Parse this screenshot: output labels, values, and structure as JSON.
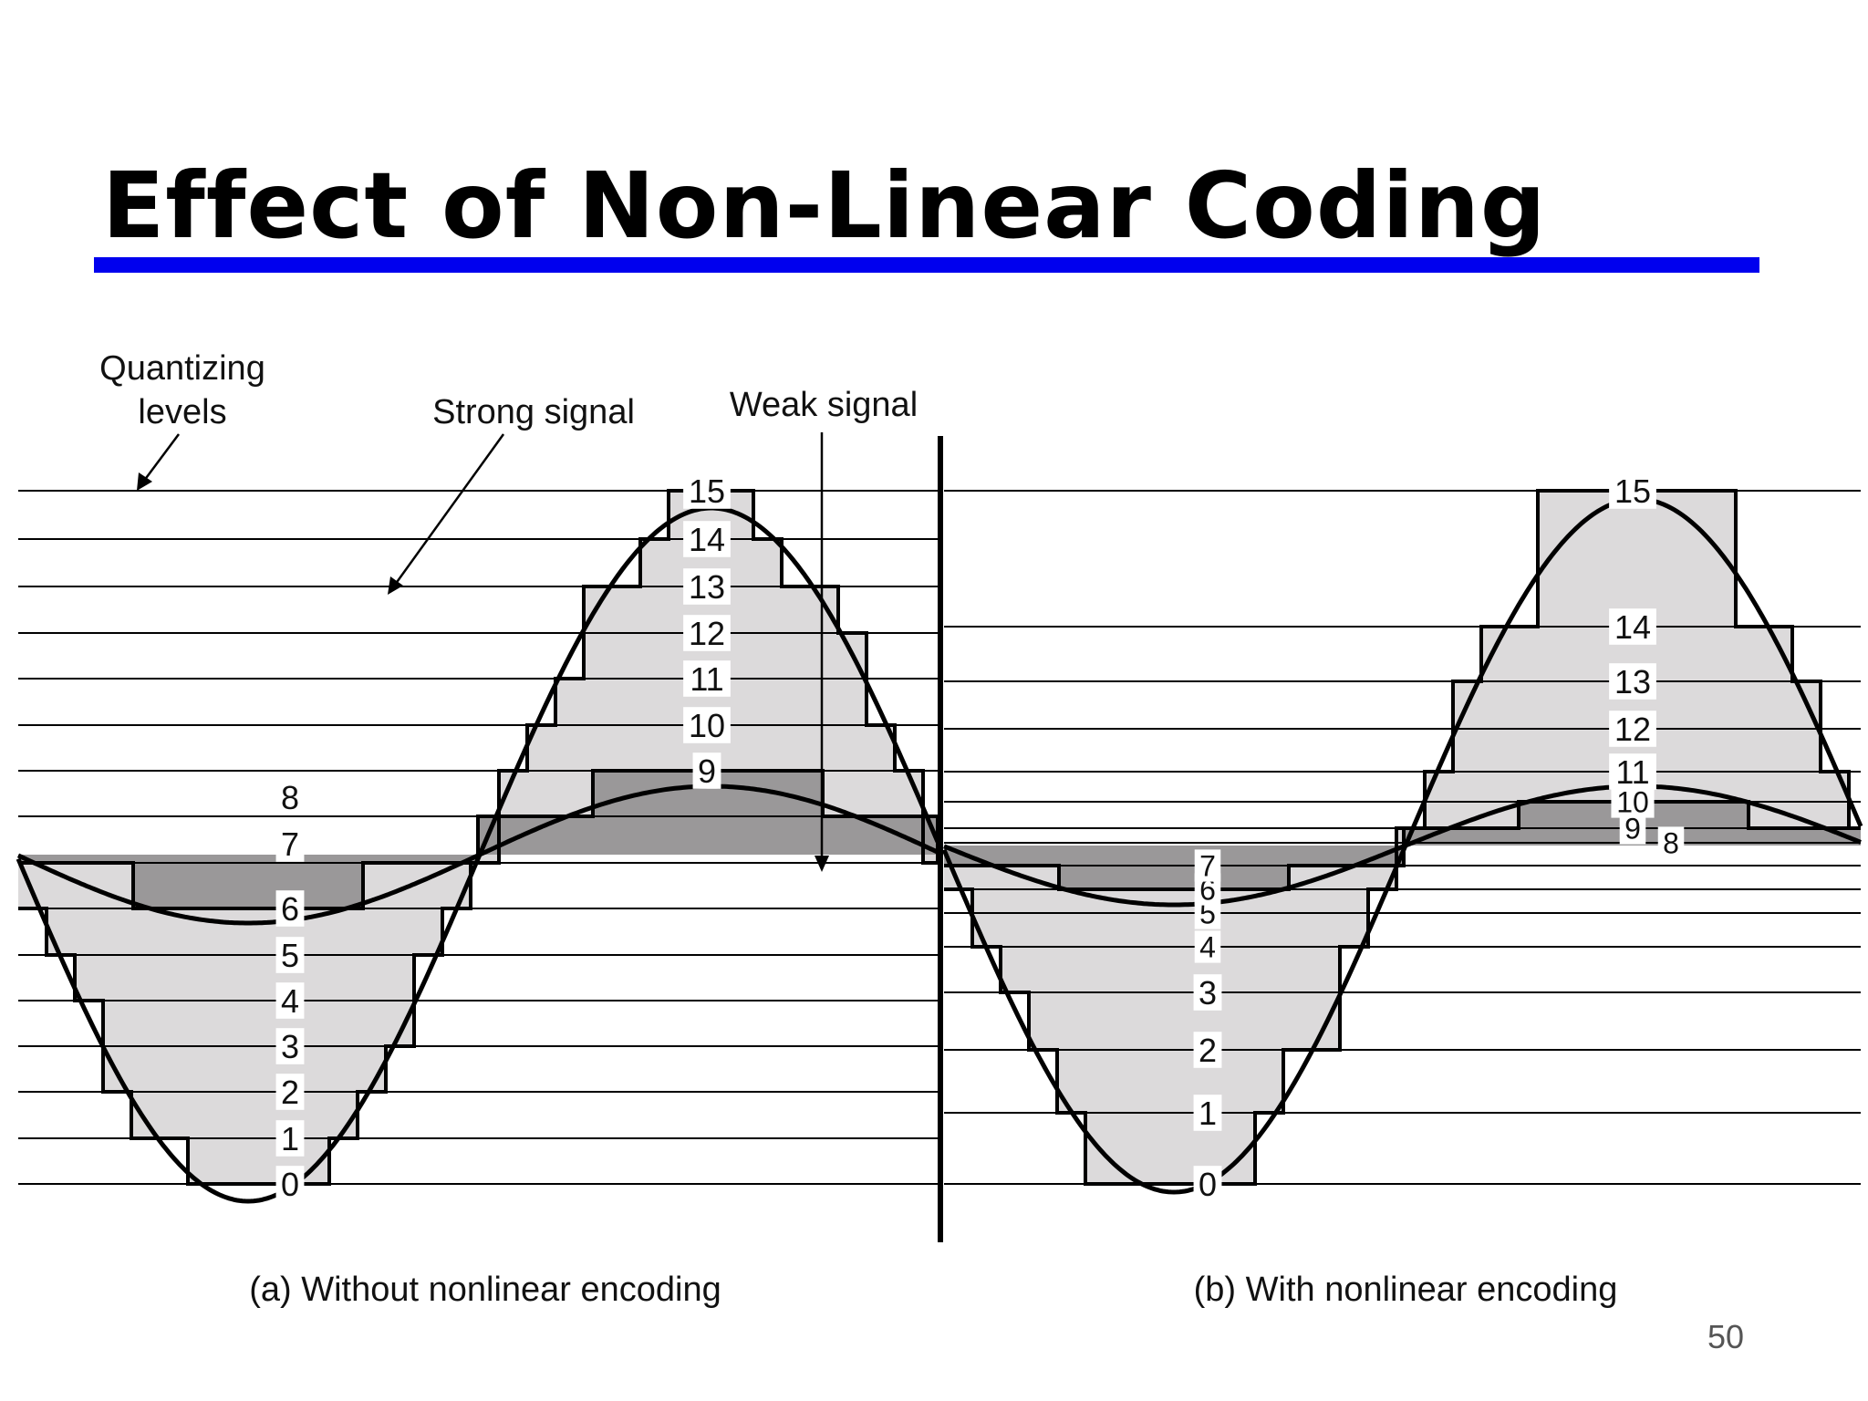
{
  "slide": {
    "title": "Effect of Non-Linear Coding",
    "page_number": "50"
  },
  "colors": {
    "accent_rule": "#0000ee",
    "strong_fill": "#dcdadb",
    "weak_fill": "#9a9899",
    "ink": "#000000"
  },
  "annotations": {
    "quantizing_levels_line1": "Quantizing",
    "quantizing_levels_line2": "levels",
    "strong_signal": "Strong signal",
    "weak_signal": "Weak signal"
  },
  "panels": [
    {
      "id": "a",
      "caption": "(a) Without nonlinear encoding",
      "level_labels": [
        "0",
        "1",
        "2",
        "3",
        "4",
        "5",
        "6",
        "7",
        "8",
        "9",
        "10",
        "11",
        "12",
        "13",
        "14",
        "15"
      ],
      "level_spacing": "uniform"
    },
    {
      "id": "b",
      "caption": "(b) With nonlinear encoding",
      "level_labels": [
        "0",
        "1",
        "2",
        "3",
        "4",
        "5",
        "6",
        "7",
        "8",
        "9",
        "10",
        "11",
        "12",
        "13",
        "14",
        "15"
      ],
      "level_spacing": "nonuniform"
    }
  ]
}
